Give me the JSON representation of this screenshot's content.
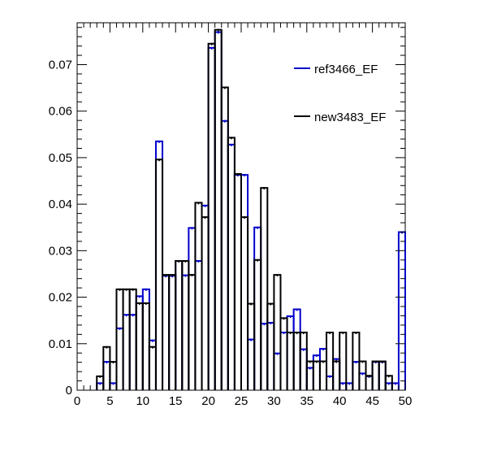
{
  "chart_data": {
    "type": "bar",
    "title": "",
    "xlabel": "",
    "ylabel": "",
    "xlim": [
      0,
      50
    ],
    "ylim": [
      0,
      0.079
    ],
    "grid": false,
    "legend_position": "top-right",
    "x_ticks": [
      0,
      5,
      10,
      15,
      20,
      25,
      30,
      35,
      40,
      45,
      50
    ],
    "y_ticks": [
      0,
      0.01,
      0.02,
      0.03,
      0.04,
      0.05,
      0.06,
      0.07
    ],
    "y_tick_labels": [
      "0",
      "0.01",
      "0.02",
      "0.03",
      "0.04",
      "0.05",
      "0.06",
      "0.07"
    ],
    "bin_width": 1,
    "x_bin_centers": [
      0.5,
      1.5,
      2.5,
      3.5,
      4.5,
      5.5,
      6.5,
      7.5,
      8.5,
      9.5,
      10.5,
      11.5,
      12.5,
      13.5,
      14.5,
      15.5,
      16.5,
      17.5,
      18.5,
      19.5,
      20.5,
      21.5,
      22.5,
      23.5,
      24.5,
      25.5,
      26.5,
      27.5,
      28.5,
      29.5,
      30.5,
      31.5,
      32.5,
      33.5,
      34.5,
      35.5,
      36.5,
      37.5,
      38.5,
      39.5,
      40.5,
      41.5,
      42.5,
      43.5,
      44.5,
      45.5,
      46.5,
      47.5,
      48.5,
      49.5
    ],
    "series": [
      {
        "name": "ref3466_EF",
        "color": "#0000cc",
        "values": [
          0,
          0,
          0,
          0.0015,
          0.0061,
          0.0015,
          0.0133,
          0.0162,
          0.0162,
          0.0202,
          0.0217,
          0.0107,
          0.0535,
          0.0246,
          0.0246,
          0.0278,
          0.0247,
          0.0349,
          0.0278,
          0.0397,
          0.0736,
          0.077,
          0.0579,
          0.0528,
          0.0463,
          0.0463,
          0.0109,
          0.035,
          0.0143,
          0.0145,
          0.0079,
          0.0124,
          0.0159,
          0.0174,
          0.0088,
          0.0048,
          0.0075,
          0.0089,
          0.003,
          0.0067,
          0.0015,
          0.0015,
          0.0061,
          0.0036,
          0.003,
          0.0061,
          0.0061,
          0.0015,
          0.0015,
          0.034
        ]
      },
      {
        "name": "new3483_EF",
        "color": "#000000",
        "values": [
          0,
          0,
          0,
          0.003,
          0.0093,
          0.0061,
          0.0217,
          0.0217,
          0.0217,
          0.0187,
          0.0187,
          0.0093,
          0.0496,
          0.0248,
          0.0248,
          0.0278,
          0.0278,
          0.0248,
          0.0403,
          0.0372,
          0.0745,
          0.0775,
          0.0651,
          0.0543,
          0.0465,
          0.0372,
          0.0186,
          0.028,
          0.0435,
          0.0186,
          0.0248,
          0.0155,
          0.0124,
          0.0124,
          0.0124,
          0.0062,
          0.0062,
          0.0062,
          0.0124,
          0.0062,
          0.0124,
          0,
          0.0124,
          0.0062,
          0.0031,
          0.0062,
          0.0062,
          0.0031,
          0,
          0
        ]
      }
    ]
  },
  "legend": {
    "entries": [
      {
        "label": "ref3466_EF",
        "color": "#0000cc"
      },
      {
        "label": "new3483_EF",
        "color": "#000000"
      }
    ]
  }
}
